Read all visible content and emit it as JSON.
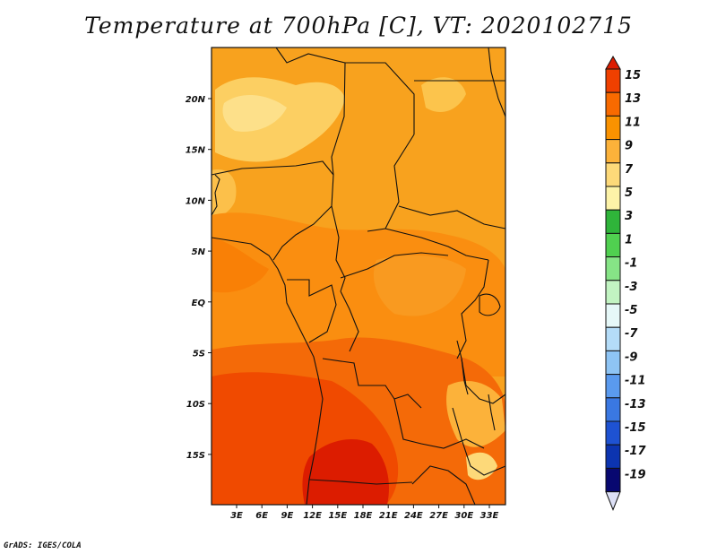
{
  "title": "Temperature at 700hPa [C], VT: 2020102715",
  "footer": "GrADS: IGES/COLA",
  "map": {
    "lat_labels": [
      "20N",
      "15N",
      "10N",
      "5N",
      "EQ",
      "5S",
      "10S",
      "15S"
    ],
    "lon_labels": [
      "3E",
      "6E",
      "9E",
      "12E",
      "15E",
      "18E",
      "21E",
      "24E",
      "27E",
      "30E",
      "33E"
    ],
    "field": "Temperature at 700hPa",
    "units": "C"
  },
  "colorbar": {
    "labels": [
      "15",
      "13",
      "11",
      "9",
      "7",
      "5",
      "3",
      "1",
      "-1",
      "-3",
      "-5",
      "-7",
      "-9",
      "-11",
      "-13",
      "-15",
      "-17",
      "-19"
    ],
    "colors": [
      "#dc1c00",
      "#f04000",
      "#f86a00",
      "#fa9200",
      "#fcb23a",
      "#fdd979",
      "#fdf3a8",
      "#2fb43a",
      "#50d050",
      "#86e486",
      "#c2f4c2",
      "#e6f8f8",
      "#b4dcf8",
      "#8ec4f4",
      "#5a9aee",
      "#3a78e2",
      "#1e52d2",
      "#0c34b0",
      "#080870",
      "#dde0f6"
    ]
  }
}
